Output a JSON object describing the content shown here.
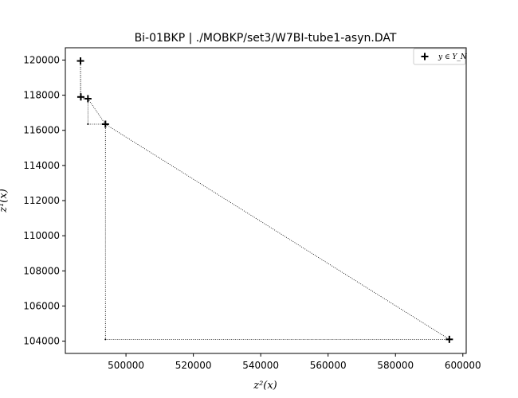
{
  "chart_data": {
    "type": "scatter",
    "title": "Bi-01BKP | ./MOBKP/set3/W7BI-tube1-asyn.DAT",
    "xlabel": "z²(x)",
    "ylabel": "z¹(x)",
    "xlim": [
      482000,
      601000
    ],
    "ylim": [
      103300,
      120700
    ],
    "xticks": [
      500000,
      520000,
      540000,
      560000,
      580000,
      600000
    ],
    "yticks": [
      104000,
      106000,
      108000,
      110000,
      112000,
      114000,
      116000,
      118000,
      120000
    ],
    "xtick_labels": [
      "500000",
      "520000",
      "540000",
      "560000",
      "580000",
      "600000"
    ],
    "ytick_labels": [
      "104000",
      "106000",
      "108000",
      "110000",
      "112000",
      "114000",
      "116000",
      "118000",
      "120000"
    ],
    "grid": false,
    "legend": {
      "position": "top-right",
      "entries": [
        "y ∈ Y_N"
      ]
    },
    "series": [
      {
        "name": "y ∈ Y_N",
        "marker": "+",
        "color": "#000000",
        "x": [
          486500,
          486600,
          488700,
          493900,
          596000
        ],
        "y": [
          119950,
          117900,
          117800,
          116350,
          104100
        ]
      }
    ],
    "staircase": {
      "description": "dotted connecting lines and corner dots",
      "color": "#000000"
    }
  }
}
